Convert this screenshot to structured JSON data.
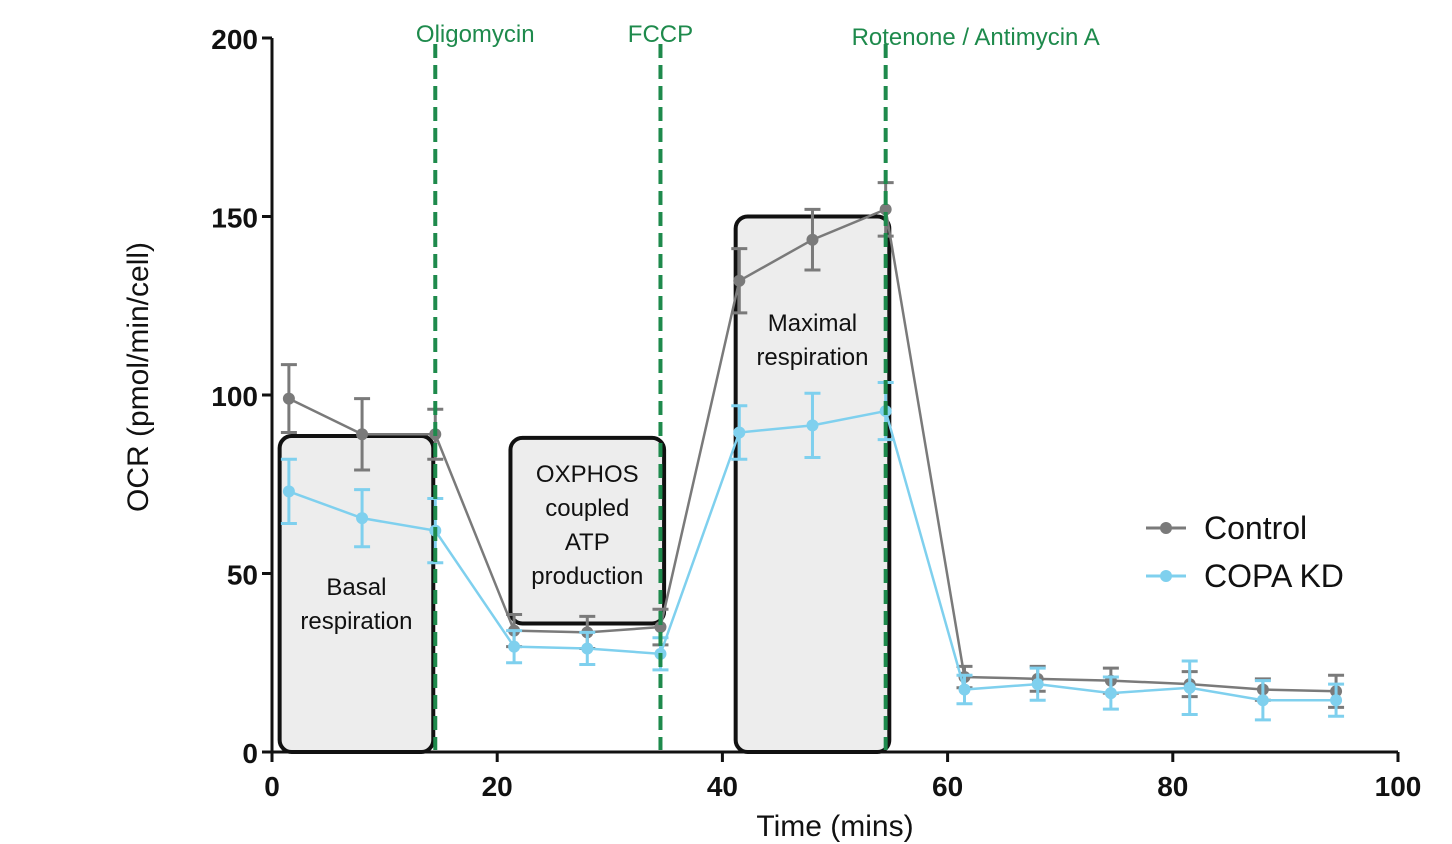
{
  "chart_data": {
    "type": "line",
    "xlabel": "Time (mins)",
    "ylabel": "OCR (pmol/min/cell)",
    "xlim": [
      0,
      100
    ],
    "ylim": [
      0,
      200
    ],
    "x_ticks": [
      "0",
      "20",
      "40",
      "60",
      "80",
      "100"
    ],
    "y_ticks": [
      "0",
      "50",
      "100",
      "150",
      "200"
    ],
    "grid": false,
    "legend_position": "right",
    "x": [
      1.5,
      8,
      14.5,
      21.5,
      28,
      34.5,
      41.5,
      48,
      54.5,
      61.5,
      68,
      74.5,
      81.5,
      88,
      94.5
    ],
    "series": [
      {
        "name": "Control",
        "color": "#7a7a7a",
        "values": [
          99,
          89,
          89,
          34,
          33.5,
          35,
          132,
          143.5,
          152,
          21,
          20.5,
          20,
          19,
          17.5,
          17
        ],
        "errors": [
          9.5,
          10,
          7,
          4.5,
          4.5,
          5,
          9,
          8.5,
          7.5,
          3,
          3.5,
          3.5,
          3.5,
          3,
          4.5
        ]
      },
      {
        "name": "COPA KD",
        "color": "#7fd0ee",
        "values": [
          73,
          65.5,
          62,
          29.5,
          29,
          27.5,
          89.5,
          91.5,
          95.5,
          17.5,
          19,
          16.5,
          18,
          14.5,
          14.5
        ],
        "errors": [
          9,
          8,
          9,
          4.5,
          4.5,
          4.5,
          7.5,
          9,
          8,
          4,
          4.5,
          4.5,
          7.5,
          5.5,
          4.5
        ]
      }
    ],
    "injections": [
      {
        "label": "Oligomycin",
        "x": 14.5
      },
      {
        "label": "FCCP",
        "x": 34.5
      },
      {
        "label": "Rotenone / Antimycin A",
        "x": 54.5
      }
    ],
    "injection_color": "#1e8a4c",
    "annotation_boxes": [
      {
        "lines": [
          "Basal",
          "respiration"
        ],
        "x0": 0.5,
        "x1": 14.5,
        "y0": 0,
        "y1": 88.5
      },
      {
        "lines": [
          "OXPHOS",
          "coupled",
          "ATP",
          "production"
        ],
        "x0": 21,
        "x1": 35,
        "y0": 36,
        "y1": 88
      },
      {
        "lines": [
          "Maximal",
          "respiration"
        ],
        "x0": 41,
        "x1": 55,
        "y0": 0,
        "y1": 150
      }
    ]
  }
}
